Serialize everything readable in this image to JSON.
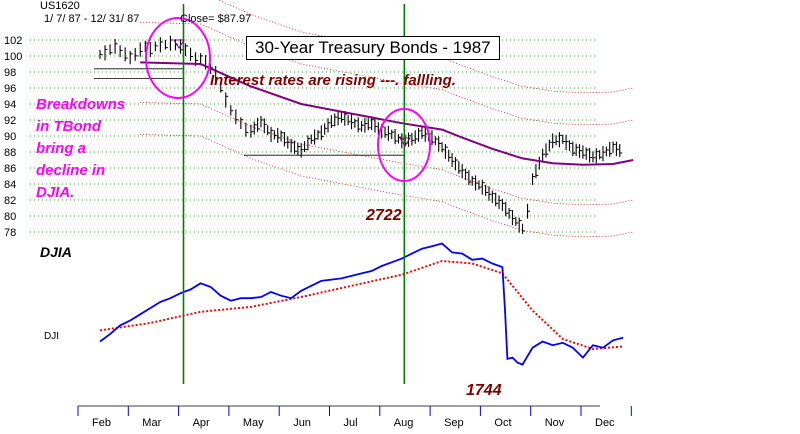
{
  "header": {
    "symbol": "US1620",
    "date_range": "1/ 7/ 87 - 12/ 31/ 87",
    "close": "Close= $87.97"
  },
  "title": "30-Year Treasury Bonds - 1987",
  "annotations": {
    "rates": "Interest rates are rising ---.  fallling.",
    "breakdown_lines": [
      "Breakdowns",
      "in TBond",
      "bring a",
      "decline in",
      "DJIA."
    ],
    "djia_label": "DJIA",
    "dji_small": "DJI",
    "peak_value": "2722",
    "trough_value": "1744"
  },
  "colors": {
    "price_bars": "#000000",
    "tbond_ma": "#800080",
    "band_dots": "#ff0000",
    "djia_line": "#0000ff",
    "djia_ma": "#ff0000",
    "signal_lines": "#008000",
    "circles": "#ff00ff",
    "grid_dots": "#008000"
  },
  "chart_data": [
    {
      "type": "line",
      "title": "30-Year Treasury Bonds - 1987",
      "series_name": "US1620 T-Bond futures (daily high-low bars)",
      "yticks": [
        102,
        100,
        98,
        96,
        94,
        92,
        90,
        88,
        86,
        84,
        82,
        80,
        78
      ],
      "ylim": [
        77,
        103
      ],
      "months": [
        "Feb",
        "Mar",
        "Apr",
        "May",
        "Jun",
        "Jul",
        "Aug",
        "Sep",
        "Oct",
        "Nov",
        "Dec"
      ],
      "x": [
        0,
        0.1,
        0.2,
        0.3,
        0.4,
        0.5,
        0.6,
        0.7,
        0.8,
        0.9,
        1.0,
        1.1,
        1.2,
        1.3,
        1.4,
        1.5,
        1.6,
        1.7,
        1.8,
        1.9,
        2.0,
        2.1,
        2.2,
        2.3,
        2.4,
        2.5,
        2.6,
        2.7,
        2.8,
        2.9,
        3.0,
        3.2,
        3.4,
        3.6,
        3.8,
        4.0,
        4.2,
        4.4,
        4.6,
        4.8,
        5.0,
        5.2,
        5.4,
        5.6,
        5.8,
        6.0,
        6.2,
        6.4,
        6.6,
        6.8,
        7.0,
        7.2,
        7.4,
        7.6,
        7.8,
        8.0,
        8.2,
        8.4,
        8.5,
        8.6,
        8.8,
        9.0,
        9.2,
        9.4,
        9.6,
        9.8,
        10.0,
        10.2,
        10.4
      ],
      "values": [
        100.2,
        100.4,
        100.8,
        101.2,
        100.6,
        100.2,
        99.8,
        100.2,
        100.8,
        101.2,
        100.8,
        101.2,
        101.4,
        101.4,
        101.6,
        101.4,
        101.2,
        100.8,
        100.2,
        99.6,
        99.6,
        99.2,
        98.4,
        97.8,
        96.0,
        94.5,
        93.2,
        92.4,
        91.6,
        90.8,
        90.6,
        91.8,
        90.2,
        90.0,
        88.8,
        88.2,
        89.6,
        90.4,
        91.8,
        92.4,
        91.8,
        91.2,
        91.6,
        90.6,
        90.2,
        89.4,
        89.6,
        90.4,
        89.8,
        88.6,
        87.0,
        85.6,
        84.4,
        83.6,
        82.4,
        81.4,
        79.8,
        78.4,
        80.6,
        84.6,
        87.6,
        89.4,
        89.6,
        88.4,
        88.0,
        87.4,
        87.8,
        88.6,
        88.0
      ],
      "moving_average": {
        "x": [
          0.8,
          2.0,
          3.0,
          4.0,
          5.0,
          6.0,
          6.8,
          7.2,
          7.8,
          8.4,
          9.0,
          9.6,
          10.2,
          10.6
        ],
        "values": [
          99.2,
          99.0,
          96.2,
          94.0,
          92.8,
          91.6,
          90.8,
          89.8,
          88.4,
          87.2,
          86.6,
          86.4,
          86.5,
          87.0
        ]
      }
    },
    {
      "type": "line",
      "series_name": "DJIA",
      "peak_label": "2722",
      "trough_label": "1744",
      "x": [
        0,
        0.2,
        0.4,
        0.6,
        0.8,
        1.0,
        1.2,
        1.4,
        1.6,
        1.8,
        2.0,
        2.2,
        2.4,
        2.6,
        2.8,
        3.0,
        3.2,
        3.4,
        3.6,
        3.8,
        4.0,
        4.2,
        4.4,
        4.6,
        4.8,
        5.0,
        5.2,
        5.4,
        5.6,
        5.8,
        6.0,
        6.2,
        6.4,
        6.6,
        6.8,
        7.0,
        7.2,
        7.4,
        7.6,
        7.8,
        8.0,
        8.05,
        8.1,
        8.2,
        8.3,
        8.4,
        8.6,
        8.8,
        9.0,
        9.2,
        9.4,
        9.6,
        9.8,
        10.0,
        10.2,
        10.4
      ],
      "values": [
        1930,
        1990,
        2060,
        2100,
        2150,
        2200,
        2250,
        2280,
        2320,
        2350,
        2400,
        2370,
        2300,
        2260,
        2280,
        2280,
        2290,
        2330,
        2300,
        2280,
        2340,
        2380,
        2420,
        2430,
        2440,
        2460,
        2480,
        2500,
        2540,
        2570,
        2600,
        2640,
        2680,
        2700,
        2722,
        2650,
        2640,
        2590,
        2600,
        2560,
        2530,
        2200,
        1790,
        1800,
        1760,
        1744,
        1880,
        1930,
        1900,
        1920,
        1880,
        1800,
        1900,
        1880,
        1940,
        1960
      ],
      "moving_average": {
        "x": [
          0,
          1.0,
          2.0,
          3.0,
          4.0,
          5.0,
          6.0,
          6.8,
          7.4,
          8.0,
          8.6,
          9.2,
          9.8,
          10.4
        ],
        "values": [
          2020,
          2080,
          2170,
          2210,
          2290,
          2380,
          2470,
          2580,
          2560,
          2480,
          2180,
          1950,
          1870,
          1890
        ]
      }
    }
  ]
}
